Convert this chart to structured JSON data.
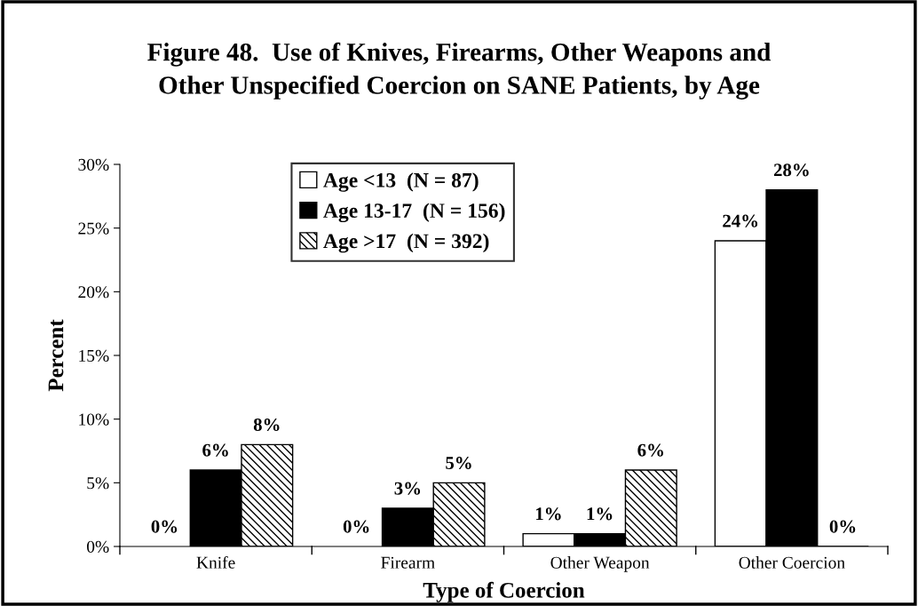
{
  "chart_data": {
    "type": "bar",
    "title": "Figure 48.  Use of Knives, Firearms, Other Weapons and\nOther Unspecified Coercion on SANE Patients, by Age",
    "xlabel": "Type of Coercion",
    "ylabel": "Percent",
    "categories": [
      "Knife",
      "Firearm",
      "Other Weapon",
      "Other Coercion"
    ],
    "series": [
      {
        "name": "Age <13  (N = 87)",
        "color": "#ffffff",
        "values": [
          0,
          0,
          1,
          24
        ],
        "value_labels": [
          "0%",
          "0%",
          "1%",
          "24%"
        ]
      },
      {
        "name": "Age 13-17  (N = 156)",
        "color": "#000000",
        "values": [
          6,
          3,
          1,
          28
        ],
        "value_labels": [
          "6%",
          "3%",
          "1%",
          "28%"
        ]
      },
      {
        "name": "Age >17  (N = 392)",
        "color": "#000000",
        "values": [
          8,
          5,
          6,
          0
        ],
        "value_labels": [
          "8%",
          "5%",
          "6%",
          "0%"
        ]
      }
    ],
    "ylim": [
      0,
      30
    ],
    "yticks": [
      {
        "value": 0,
        "label": "0%"
      },
      {
        "value": 5,
        "label": "5%"
      },
      {
        "value": 10,
        "label": "10%"
      },
      {
        "value": 15,
        "label": "15%"
      },
      {
        "value": 20,
        "label": "20%"
      },
      {
        "value": 25,
        "label": "25%"
      },
      {
        "value": 30,
        "label": "30%"
      }
    ],
    "grid": false,
    "legend": "top left"
  }
}
